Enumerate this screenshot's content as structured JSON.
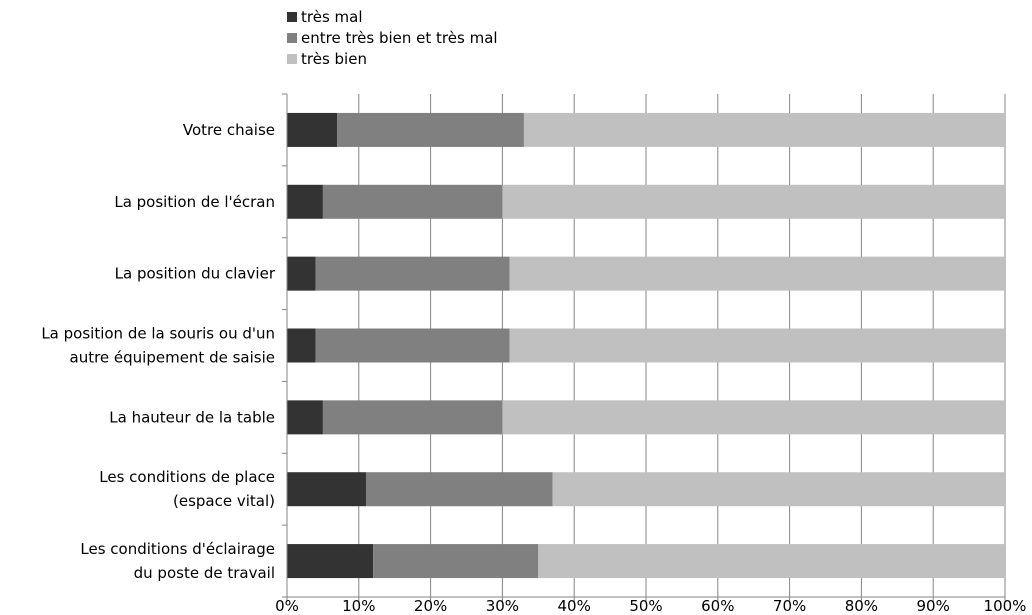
{
  "chart_data": {
    "type": "bar",
    "orientation": "horizontal",
    "stacked": "percent",
    "categories": [
      "Votre chaise",
      "La position de l'écran",
      "La position du clavier",
      "La position de la souris ou d'un autre équipement de saisie",
      "La hauteur de la table",
      "Les conditions de place (espace vital)",
      "Les conditions d'éclairage du poste de travail"
    ],
    "category_lines": [
      [
        "Votre chaise"
      ],
      [
        "La position de l'écran"
      ],
      [
        "La position du clavier"
      ],
      [
        "La position de la souris ou d'un",
        "autre équipement de saisie"
      ],
      [
        "La hauteur de la table"
      ],
      [
        "Les conditions de place",
        "(espace vital)"
      ],
      [
        "Les conditions d'éclairage",
        "du poste de travail"
      ]
    ],
    "series": [
      {
        "name": "très mal",
        "color": "#333333",
        "values": [
          7,
          5,
          4,
          4,
          5,
          11,
          12
        ]
      },
      {
        "name": "entre très bien et très mal",
        "color": "#808080",
        "values": [
          26,
          25,
          27,
          27,
          25,
          26,
          23
        ]
      },
      {
        "name": "très bien",
        "color": "#c0c0c0",
        "values": [
          67,
          70,
          69,
          69,
          70,
          63,
          65
        ]
      }
    ],
    "xlim": [
      0,
      100
    ],
    "x_ticks": [
      "0%",
      "10%",
      "20%",
      "30%",
      "40%",
      "50%",
      "60%",
      "70%",
      "80%",
      "90%",
      "100%"
    ],
    "grid": "vertical",
    "legend": "top-left",
    "title": "",
    "xlabel": "",
    "ylabel": ""
  }
}
